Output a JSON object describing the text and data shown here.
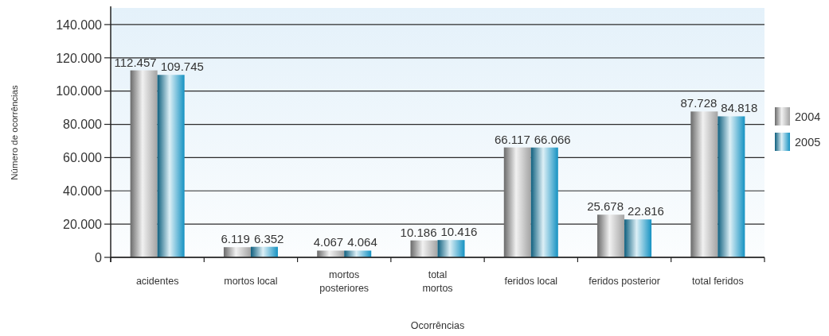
{
  "chart_data": {
    "type": "bar",
    "categories": [
      "acidentes",
      "mortos local",
      "mortos\nposteriores",
      "total\nmortos",
      "feridos local",
      "feridos posterior",
      "total feridos"
    ],
    "series": [
      {
        "name": "2004",
        "color": "#a3a3a3",
        "values": [
          112457,
          6119,
          4067,
          10186,
          66117,
          25678,
          87728
        ],
        "value_labels": [
          "112.457",
          "6.119",
          "4.067",
          "10.186",
          "66.117",
          "25.678",
          "87.728"
        ]
      },
      {
        "name": "2005",
        "color": "#1592c2",
        "values": [
          109745,
          6352,
          4064,
          10416,
          66066,
          22816,
          84818
        ],
        "value_labels": [
          "109.745",
          "6.352",
          "4.064",
          "10.416",
          "66.066",
          "22.816",
          "84.818"
        ]
      }
    ],
    "ylim": [
      0,
      150000
    ],
    "yticks": [
      {
        "value": 0,
        "label": "0"
      },
      {
        "value": 20000,
        "label": "20.000"
      },
      {
        "value": 40000,
        "label": "40.000"
      },
      {
        "value": 60000,
        "label": "60.000"
      },
      {
        "value": 80000,
        "label": "80.000"
      },
      {
        "value": 100000,
        "label": "100.000"
      },
      {
        "value": 120000,
        "label": "120.000"
      },
      {
        "value": 140000,
        "label": "140.000"
      }
    ],
    "xlabel": "Ocorrências",
    "ylabel": "Número de ocorrências",
    "grid": "y",
    "legend": "right"
  }
}
